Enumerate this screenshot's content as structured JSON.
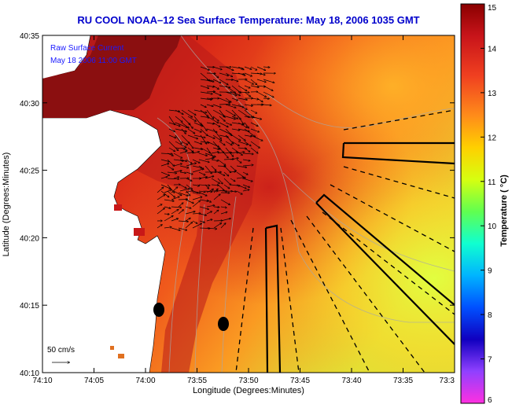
{
  "map": {
    "title": "RU COOL  NOAA–12  Sea Surface Temperature:  May 18, 2006 1035 GMT",
    "legend_line1": "Raw Surface Current",
    "legend_line2": "May 18 2006 11:00 GMT",
    "scale_label": "50 cm/s",
    "xlabel": "Longitude (Degrees:Minutes)",
    "ylabel": "Latitude (Degrees:Minutes)",
    "lat_ticks": [
      "40:35",
      "40:30",
      "40:25",
      "40:20",
      "40:15",
      "40:10"
    ],
    "lon_ticks": [
      "74:10",
      "74:05",
      "74:00",
      "73:55",
      "73:50",
      "73:45",
      "73:40",
      "73:35",
      "73:3"
    ]
  },
  "colorbar": {
    "label": "Temperature ( °C)",
    "ticks": [
      "15",
      "14",
      "13",
      "12",
      "11",
      "10",
      "9",
      "8",
      "7",
      "6"
    ],
    "min": 6,
    "max": 15
  },
  "colors": {
    "title": "#0000cc",
    "land": "#ffffff",
    "nearshore": "#8b0f10",
    "ocean_warm": "#d2231a",
    "ocean_cool": "#e6ff33",
    "ship_track": "#000000"
  }
}
